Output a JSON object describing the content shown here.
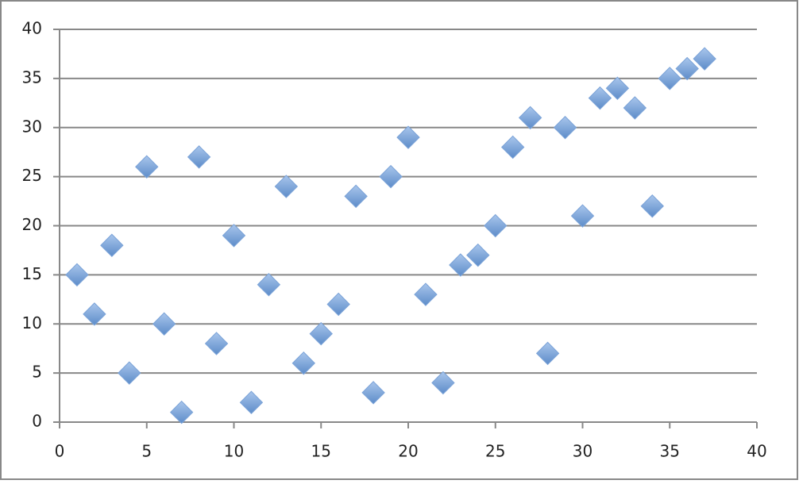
{
  "chart_data": {
    "type": "scatter",
    "x": [
      1,
      2,
      3,
      4,
      5,
      6,
      7,
      8,
      9,
      10,
      11,
      12,
      13,
      14,
      15,
      16,
      17,
      18,
      19,
      20,
      21,
      22,
      23,
      24,
      25,
      26,
      27,
      28,
      29,
      30,
      31,
      32,
      33,
      34,
      35,
      36,
      37
    ],
    "values": [
      15,
      11,
      18,
      5,
      26,
      10,
      1,
      27,
      8,
      19,
      2,
      14,
      24,
      6,
      9,
      12,
      23,
      3,
      25,
      29,
      13,
      4,
      16,
      17,
      20,
      28,
      31,
      7,
      30,
      21,
      33,
      34,
      32,
      22,
      35,
      36,
      37
    ],
    "color": "#7ba3d8",
    "xlim": [
      0,
      40
    ],
    "xticks": [
      0,
      5,
      10,
      15,
      20,
      25,
      30,
      35,
      40
    ],
    "ylim": [
      0,
      40
    ],
    "yticks": [
      0,
      5,
      10,
      15,
      20,
      25,
      30,
      35,
      40
    ],
    "grid": true
  }
}
